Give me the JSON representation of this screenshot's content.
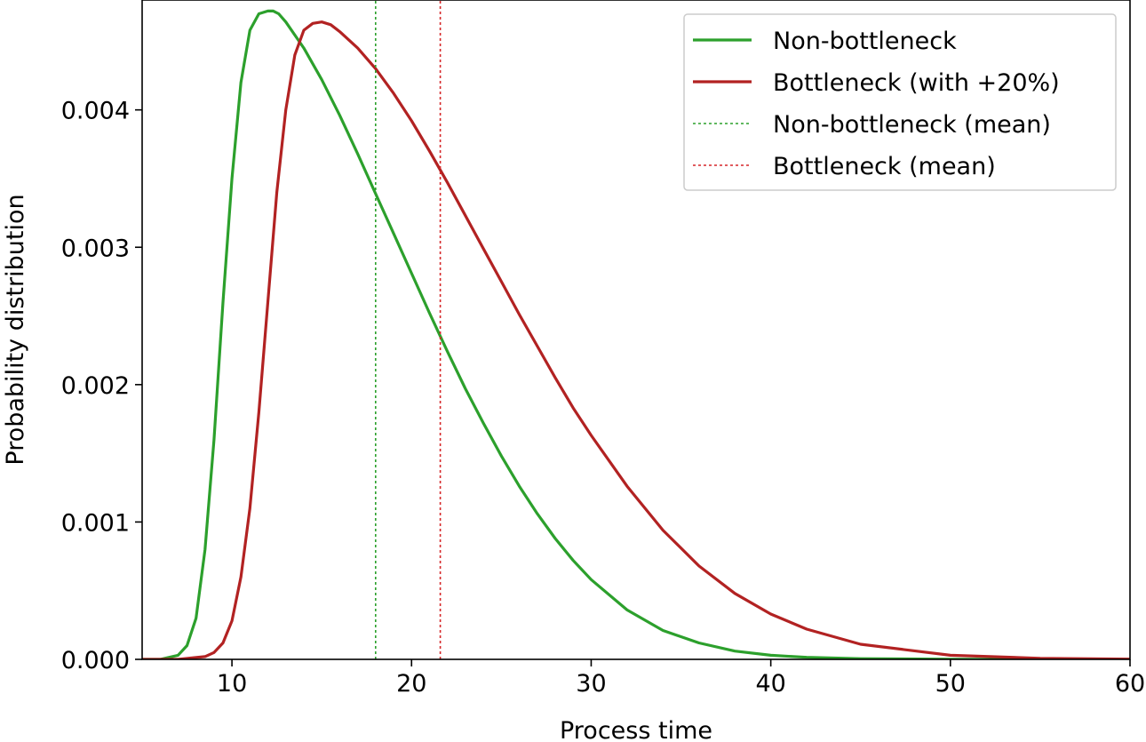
{
  "chart_data": {
    "type": "line",
    "xlabel": "Process time",
    "ylabel": "Probability distribution",
    "xlim": [
      5,
      60
    ],
    "ylim": [
      0,
      0.0048
    ],
    "xticks": [
      10,
      20,
      30,
      40,
      50,
      60
    ],
    "xtick_labels": [
      "10",
      "20",
      "30",
      "40",
      "50",
      "60"
    ],
    "yticks": [
      0,
      0.001,
      0.002,
      0.003,
      0.004
    ],
    "ytick_labels": [
      "0.000",
      "0.001",
      "0.002",
      "0.003",
      "0.004"
    ],
    "grid": false,
    "legend_position": "top-right",
    "series": [
      {
        "name": "Non-bottleneck",
        "color": "#2ca02c",
        "style": "solid",
        "x": [
          5,
          6,
          7,
          7.5,
          8,
          8.5,
          9,
          9.5,
          10,
          10.5,
          11,
          11.5,
          12,
          12.3,
          12.6,
          13,
          14,
          15,
          16,
          17,
          18,
          19,
          20,
          21,
          22,
          23,
          24,
          25,
          26,
          27,
          28,
          29,
          30,
          32,
          34,
          36,
          38,
          40,
          42,
          45,
          50,
          55,
          60
        ],
        "y": [
          0.0,
          0.0,
          3e-05,
          0.0001,
          0.0003,
          0.0008,
          0.0016,
          0.0026,
          0.0035,
          0.0042,
          0.00458,
          0.0047,
          0.00472,
          0.00472,
          0.0047,
          0.00464,
          0.00445,
          0.00422,
          0.00396,
          0.00368,
          0.00339,
          0.0031,
          0.00281,
          0.00252,
          0.00224,
          0.00197,
          0.00172,
          0.00148,
          0.00126,
          0.00106,
          0.00088,
          0.00072,
          0.00058,
          0.00036,
          0.00021,
          0.00012,
          6e-05,
          3e-05,
          1.5e-05,
          5e-06,
          5e-07,
          0.0,
          0.0
        ]
      },
      {
        "name": "Bottleneck (with +20%)",
        "color": "#b22222",
        "style": "solid",
        "x": [
          5,
          7,
          8.5,
          9,
          9.5,
          10,
          10.5,
          11,
          11.5,
          12,
          12.5,
          13,
          13.5,
          14,
          14.5,
          15,
          15.5,
          16,
          17,
          18,
          19,
          20,
          21,
          22,
          23,
          24,
          25,
          26,
          27,
          28,
          29,
          30,
          32,
          34,
          36,
          38,
          40,
          42,
          45,
          50,
          55,
          60
        ],
        "y": [
          0.0,
          0.0,
          2e-05,
          5e-05,
          0.00012,
          0.00028,
          0.0006,
          0.0011,
          0.0018,
          0.0026,
          0.0034,
          0.004,
          0.0044,
          0.00458,
          0.00463,
          0.00464,
          0.00462,
          0.00457,
          0.00445,
          0.0043,
          0.00412,
          0.00392,
          0.0037,
          0.00347,
          0.00323,
          0.00299,
          0.00275,
          0.00251,
          0.00228,
          0.00205,
          0.00183,
          0.00163,
          0.00126,
          0.00094,
          0.00068,
          0.00048,
          0.00033,
          0.00022,
          0.00011,
          3e-05,
          8e-06,
          2e-06
        ]
      },
      {
        "name": "Non-bottleneck (mean)",
        "color": "#2ca02c",
        "style": "dotted",
        "x": [
          18,
          18
        ],
        "y": [
          0,
          0.0048
        ]
      },
      {
        "name": "Bottleneck (mean)",
        "color": "#d62728",
        "style": "dotted",
        "x": [
          21.6,
          21.6
        ],
        "y": [
          0,
          0.0048
        ]
      }
    ]
  }
}
